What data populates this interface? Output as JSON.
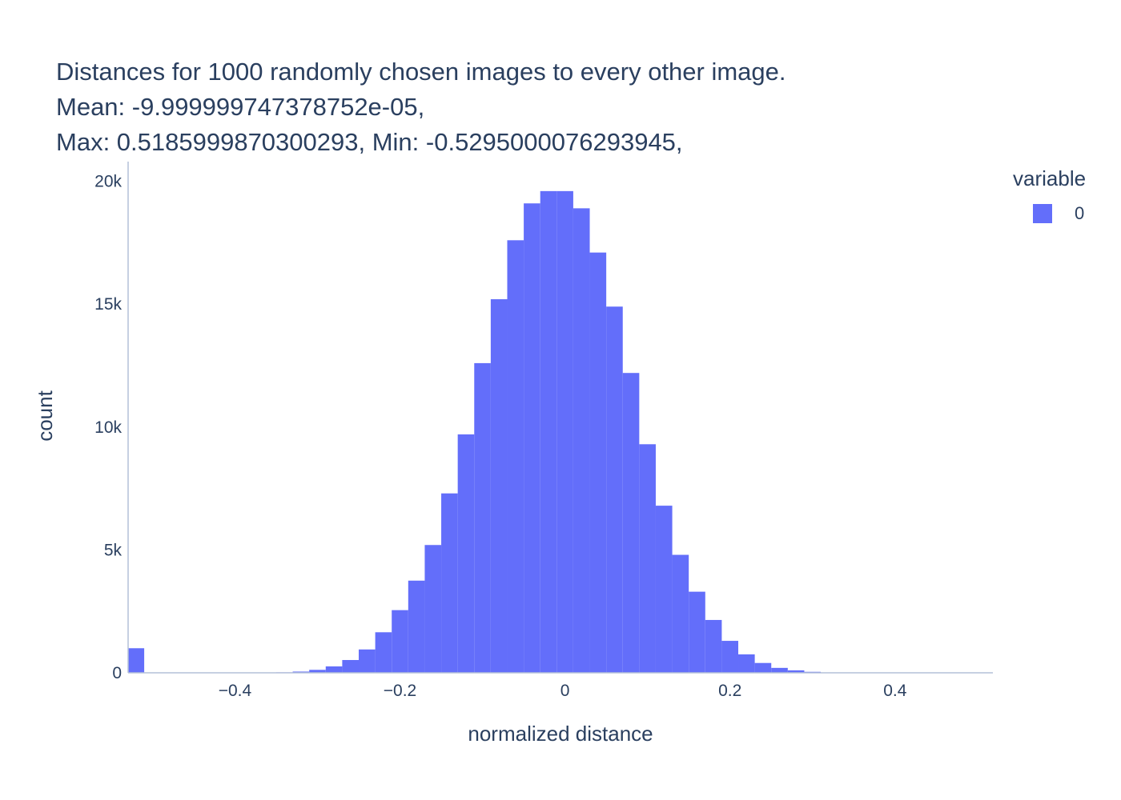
{
  "chart_data": {
    "type": "bar",
    "title_lines": [
      "Distances for 1000 randomly chosen images to every other image.",
      "Mean: -9.999999747378752e-05,",
      "Max: 0.5185999870300293, Min: -0.5295000076293945,"
    ],
    "xlabel": "normalized distance",
    "ylabel": "count",
    "xlim": [
      -0.5295,
      0.5186
    ],
    "ylim": [
      0,
      20800
    ],
    "x_ticks": [
      {
        "value": -0.4,
        "label": "−0.4"
      },
      {
        "value": -0.2,
        "label": "−0.2"
      },
      {
        "value": 0,
        "label": "0"
      },
      {
        "value": 0.2,
        "label": "0.2"
      },
      {
        "value": 0.4,
        "label": "0.4"
      }
    ],
    "y_ticks": [
      {
        "value": 0,
        "label": "0"
      },
      {
        "value": 5000,
        "label": "5k"
      },
      {
        "value": 10000,
        "label": "10k"
      },
      {
        "value": 15000,
        "label": "15k"
      },
      {
        "value": 20000,
        "label": "20k"
      }
    ],
    "legend": {
      "title": "variable",
      "placement": "top-right",
      "items": [
        {
          "name": "0",
          "color": "#636efa"
        }
      ]
    },
    "series": [
      {
        "name": "0",
        "color": "#636efa",
        "bin_width": 0.02,
        "x": [
          -0.52,
          -0.5,
          -0.48,
          -0.46,
          -0.44,
          -0.42,
          -0.4,
          -0.38,
          -0.36,
          -0.34,
          -0.32,
          -0.3,
          -0.28,
          -0.26,
          -0.24,
          -0.22,
          -0.2,
          -0.18,
          -0.16,
          -0.14,
          -0.12,
          -0.1,
          -0.08,
          -0.06,
          -0.04,
          -0.02,
          0,
          0.02,
          0.04,
          0.06,
          0.08,
          0.1,
          0.12,
          0.14,
          0.16,
          0.18,
          0.2,
          0.22,
          0.24,
          0.26,
          0.28,
          0.3,
          0.32,
          0.34,
          0.36,
          0.38,
          0.4,
          0.42,
          0.44,
          0.46,
          0.48,
          0.5
        ],
        "values": [
          1000,
          0,
          0,
          0,
          0,
          0,
          0,
          0,
          0,
          20,
          50,
          120,
          260,
          520,
          950,
          1650,
          2550,
          3750,
          5200,
          7300,
          9700,
          12600,
          15200,
          17600,
          19100,
          19600,
          19600,
          18900,
          17100,
          14900,
          12200,
          9300,
          6800,
          4800,
          3300,
          2150,
          1300,
          750,
          400,
          200,
          100,
          40,
          15,
          0,
          0,
          0,
          0,
          0,
          0,
          0,
          0,
          0
        ]
      }
    ]
  }
}
